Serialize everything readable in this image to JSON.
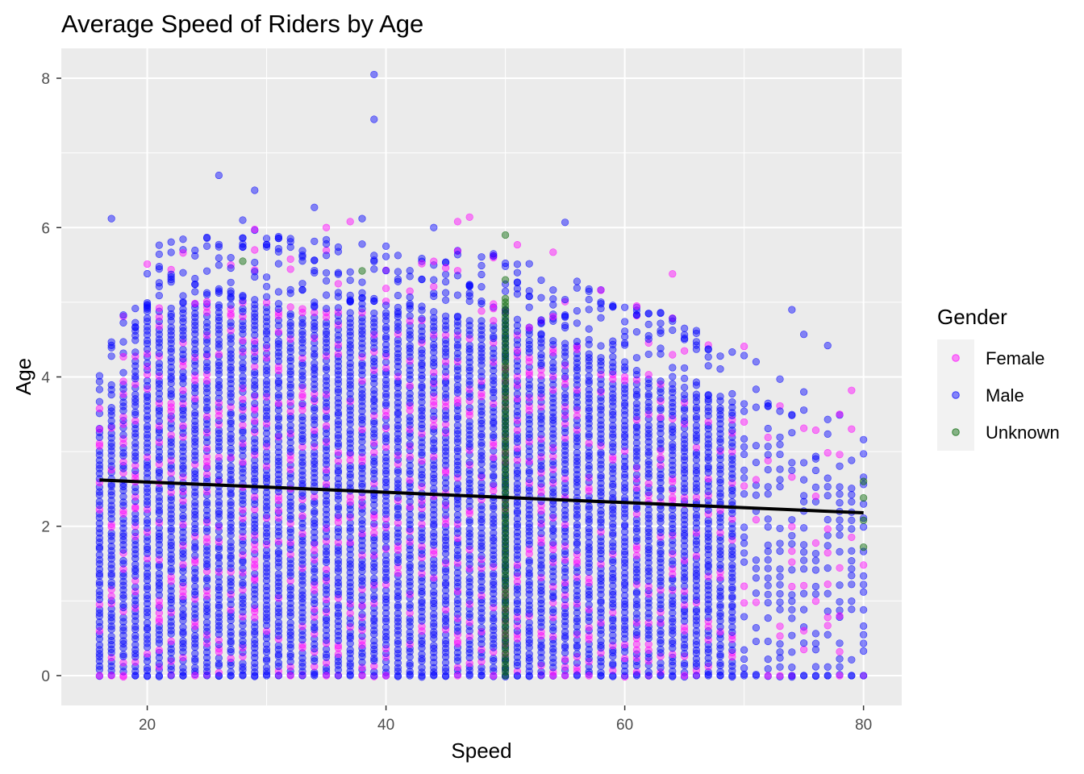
{
  "chart_data": {
    "type": "scatter",
    "title": "Average Speed of Riders by Age",
    "xlabel": "Speed",
    "ylabel": "Age",
    "xlim": [
      12.8,
      83.2
    ],
    "ylim": [
      -0.4,
      8.4
    ],
    "x_ticks": [
      20,
      40,
      60,
      80
    ],
    "y_ticks": [
      0,
      2,
      4,
      6,
      8
    ],
    "x_minor_ticks": [
      30,
      50,
      70
    ],
    "y_minor_ticks": [
      1,
      3,
      5,
      7
    ],
    "grid": true,
    "background": "#EBEBEB",
    "legend": {
      "title": "Gender",
      "position": "right",
      "entries": [
        "Female",
        "Male",
        "Unknown"
      ]
    },
    "colors": {
      "Female": "#FF00FF",
      "Male": "#0000FF",
      "Unknown": "#006400",
      "trend": "#000000"
    },
    "series": [
      {
        "name": "Female",
        "note_points": [
          [
            35,
            6.0
          ],
          [
            37,
            6.08
          ],
          [
            46,
            6.08
          ],
          [
            47,
            6.14
          ],
          [
            51,
            5.77
          ],
          [
            54,
            5.67
          ],
          [
            64,
            5.38
          ],
          [
            61,
            4.95
          ],
          [
            16,
            3.3
          ],
          [
            78,
            3.5
          ],
          [
            79,
            3.82
          ],
          [
            80,
            1.48
          ],
          [
            75,
            0.6
          ],
          [
            78,
            0.8
          ],
          [
            77,
            0.78
          ]
        ]
      },
      {
        "name": "Male",
        "note_points": [
          [
            39,
            8.05
          ],
          [
            39,
            7.45
          ],
          [
            26,
            6.7
          ],
          [
            29,
            6.5
          ],
          [
            17,
            6.12
          ],
          [
            28,
            6.1
          ],
          [
            34,
            6.27
          ],
          [
            38,
            6.12
          ],
          [
            44,
            6.0
          ],
          [
            55,
            6.07
          ],
          [
            74,
            4.9
          ],
          [
            75,
            4.57
          ],
          [
            77,
            4.42
          ],
          [
            80,
            3.16
          ],
          [
            79,
            0.0
          ],
          [
            77,
            0.0
          ],
          [
            75,
            0.0
          ],
          [
            74,
            0.0
          ]
        ]
      },
      {
        "name": "Unknown",
        "note_points": [
          [
            50,
            5.9
          ],
          [
            50,
            5.3
          ],
          [
            28,
            5.55
          ],
          [
            38,
            5.42
          ],
          [
            80,
            2.6
          ],
          [
            80,
            2.38
          ],
          [
            80,
            2.08
          ],
          [
            80,
            1.72
          ]
        ]
      }
    ],
    "trend_line": {
      "x": [
        16,
        80
      ],
      "y": [
        2.62,
        2.18
      ]
    }
  }
}
